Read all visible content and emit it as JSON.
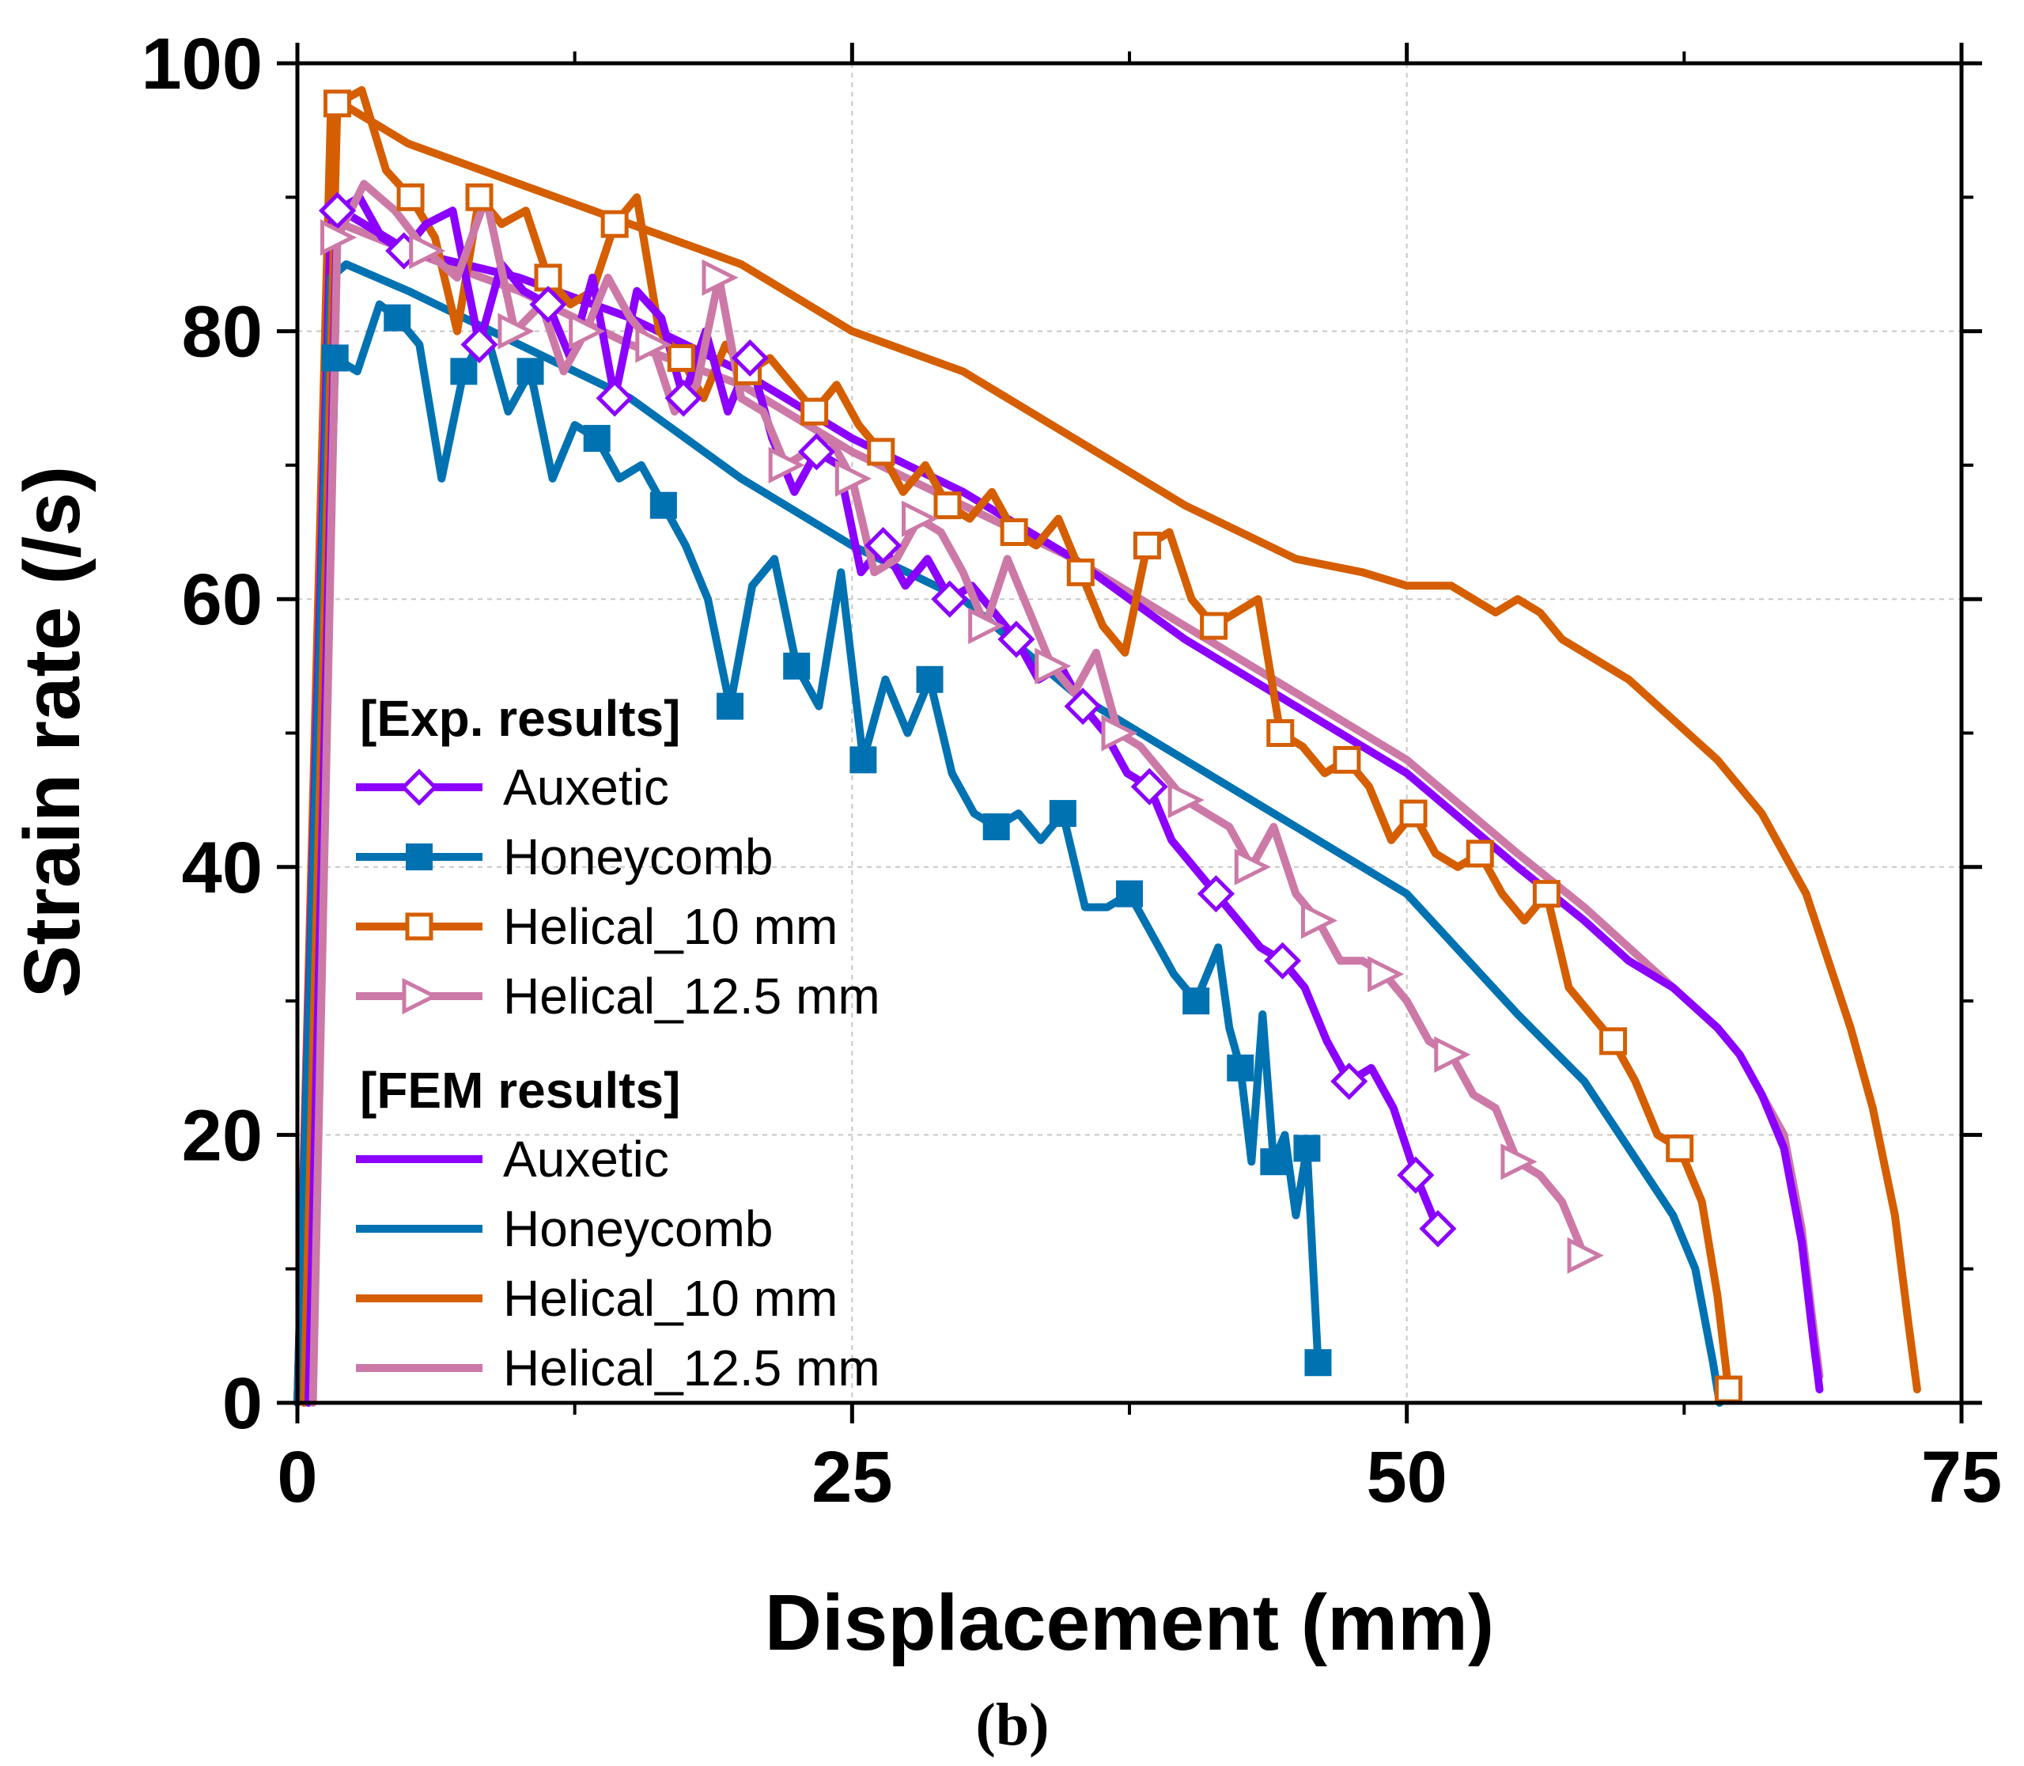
{
  "chart_data": {
    "type": "line",
    "xlabel": "Displacement (mm)",
    "ylabel": "Strain rate (/s)",
    "panel_label": "(b)",
    "xlim": [
      0,
      75
    ],
    "ylim": [
      0,
      100
    ],
    "xticks": [
      0,
      25,
      50,
      75
    ],
    "yticks": [
      0,
      20,
      40,
      60,
      80,
      100
    ],
    "grid": true,
    "legend_position": "left",
    "legend_groups": [
      {
        "heading": "[Exp. results]",
        "entries": [
          "Auxetic",
          "Honeycomb",
          "Helical_10 mm",
          "Helical_12.5 mm"
        ]
      },
      {
        "heading": "[FEM results]",
        "entries": [
          "Auxetic",
          "Honeycomb",
          "Helical_10 mm",
          "Helical_12.5 mm"
        ]
      }
    ],
    "series": [
      {
        "name": "Auxetic",
        "group": "exp",
        "color": "#8B00FF",
        "marker": "diamond-open",
        "x": [
          0.5,
          1.8,
          2.8,
          3.8,
          4.8,
          5.8,
          7.0,
          8.2,
          9.2,
          10.2,
          11.3,
          12.3,
          13.3,
          14.3,
          15.3,
          16.4,
          17.4,
          18.4,
          19.4,
          20.4,
          21.4,
          22.4,
          23.4,
          24.4,
          25.4,
          26.4,
          27.4,
          28.4,
          29.4,
          30.4,
          31.4,
          32.4,
          33.4,
          34.4,
          35.4,
          36.4,
          37.4,
          38.4,
          39.4,
          40.4,
          41.4,
          42.4,
          43.4,
          44.4,
          45.4,
          46.4,
          47.4,
          48.4,
          49.4,
          50.4,
          51.4
        ],
        "y": [
          0,
          89,
          90,
          87,
          86,
          88,
          89,
          79,
          85,
          83,
          82,
          78,
          84,
          75,
          83,
          81,
          75,
          80,
          74,
          78,
          72,
          68,
          71,
          70,
          62,
          64,
          61,
          63,
          60,
          61,
          59,
          57,
          54,
          55,
          52,
          50,
          47,
          46,
          42,
          40,
          38,
          36,
          34,
          33,
          31,
          27,
          24,
          25,
          22,
          17,
          13
        ]
      },
      {
        "name": "Honeycomb",
        "group": "exp",
        "color": "#0072B2",
        "marker": "square-filled",
        "x": [
          0.5,
          1.7,
          2.7,
          3.7,
          4.5,
          5.5,
          6.5,
          7.5,
          8.5,
          9.5,
          10.5,
          11.5,
          12.5,
          13.5,
          14.5,
          15.5,
          16.5,
          17.5,
          18.5,
          19.5,
          20.5,
          21.5,
          22.5,
          23.5,
          24.5,
          25.5,
          26.5,
          27.5,
          28.5,
          29.5,
          30.5,
          31.5,
          32.5,
          33.5,
          34.5,
          35.5,
          36.5,
          37.5,
          38.5,
          39.5,
          40.5,
          41.5,
          42.0,
          42.5,
          43.0,
          43.5,
          44.0,
          44.5,
          45.0,
          45.5,
          46.0
        ],
        "y": [
          0,
          78,
          77,
          82,
          81,
          79,
          69,
          77,
          80,
          74,
          77,
          69,
          73,
          72,
          69,
          70,
          67,
          64,
          60,
          52,
          61,
          63,
          55,
          52,
          62,
          48,
          54,
          50,
          54,
          47,
          44,
          43,
          44,
          42,
          44,
          37,
          37,
          38,
          35,
          32,
          30,
          34,
          28,
          25,
          18,
          29,
          18,
          20,
          14,
          19,
          3
        ]
      },
      {
        "name": "Helical_10 mm",
        "group": "exp",
        "color": "#D55E00",
        "marker": "square-open",
        "x": [
          0.3,
          1.8,
          2.9,
          4.0,
          5.1,
          6.2,
          7.2,
          8.2,
          9.2,
          10.3,
          11.3,
          12.3,
          13.3,
          14.3,
          15.3,
          16.3,
          17.3,
          18.3,
          19.3,
          20.3,
          21.3,
          22.3,
          23.3,
          24.3,
          25.3,
          26.3,
          27.3,
          28.3,
          29.3,
          30.3,
          31.3,
          32.3,
          33.3,
          34.3,
          35.3,
          36.3,
          37.3,
          38.3,
          39.3,
          40.3,
          41.3,
          42.3,
          43.3,
          44.3,
          45.3,
          46.3,
          47.3,
          48.3,
          49.3,
          50.3,
          51.3,
          52.3,
          53.3,
          54.3,
          55.3,
          56.3,
          57.3,
          58.3,
          59.3,
          60.3,
          61.3,
          62.3,
          63.3,
          64.0,
          64.5
        ],
        "y": [
          0,
          97,
          98,
          92,
          90,
          87,
          80,
          90,
          88,
          89,
          84,
          82,
          83,
          88,
          90,
          80,
          78,
          75,
          79,
          77,
          78,
          76,
          74,
          76,
          73,
          71,
          68,
          70,
          67,
          66,
          68,
          65,
          64,
          66,
          62,
          58,
          56,
          64,
          65,
          60,
          58,
          59,
          60,
          50,
          49,
          47,
          48,
          46,
          42,
          44,
          41,
          40,
          41,
          38,
          36,
          38,
          31,
          29,
          27,
          24,
          20,
          19,
          15,
          8,
          1
        ]
      },
      {
        "name": "Helical_12.5 mm",
        "group": "exp",
        "color": "#CC79A7",
        "marker": "triangle-right-open",
        "x": [
          0.7,
          1.8,
          3.0,
          4.4,
          5.8,
          7.2,
          8.5,
          9.8,
          11.0,
          12.0,
          13.0,
          14.0,
          15.0,
          16.0,
          17.0,
          18.0,
          19.0,
          20.0,
          21.0,
          22.0,
          23.0,
          24.0,
          25.0,
          26.0,
          27.0,
          28.0,
          29.0,
          30.0,
          31.0,
          32.0,
          33.0,
          34.0,
          35.0,
          36.0,
          37.0,
          38.0,
          39.0,
          40.0,
          41.0,
          42.0,
          43.0,
          44.0,
          45.0,
          46.0,
          47.0,
          48.0,
          49.0,
          50.0,
          51.0,
          52.0,
          53.0,
          54.0,
          55.0,
          56.0,
          57.0,
          58.0
        ],
        "y": [
          0,
          87,
          91,
          89,
          86,
          84,
          90,
          80,
          82,
          77,
          80,
          84,
          81,
          79,
          74,
          76,
          84,
          75,
          74,
          70,
          71,
          72,
          69,
          62,
          63,
          66,
          65,
          62,
          58,
          63,
          59,
          55,
          53,
          56,
          50,
          49,
          47,
          45,
          44,
          43,
          40,
          43,
          38,
          36,
          33,
          33,
          32,
          30,
          27,
          26,
          23,
          22,
          18,
          17,
          15,
          11
        ]
      },
      {
        "name": "Auxetic",
        "group": "fem",
        "color": "#8B00FF",
        "marker": "none",
        "x": [
          0,
          1.5,
          2.0,
          5,
          10,
          15,
          20,
          25,
          30,
          35,
          40,
          45,
          50,
          55,
          58,
          60,
          62,
          64,
          65,
          66,
          67,
          67.8,
          68.3,
          68.6
        ],
        "y": [
          0,
          88,
          89,
          86,
          84,
          81,
          77,
          72,
          68,
          63,
          57,
          52,
          47,
          40,
          36,
          33,
          31,
          28,
          26,
          23,
          19,
          12,
          5,
          1
        ]
      },
      {
        "name": "Honeycomb",
        "group": "fem",
        "color": "#0072B2",
        "marker": "none",
        "x": [
          0,
          1.5,
          2.2,
          5,
          10,
          15,
          20,
          25,
          30,
          35,
          40,
          45,
          50,
          55,
          58,
          60,
          62,
          63,
          63.8,
          64.1
        ],
        "y": [
          0,
          84,
          85,
          83,
          79,
          75,
          69,
          64,
          60,
          53,
          48,
          43,
          38,
          29,
          24,
          19,
          14,
          10,
          3,
          0
        ]
      },
      {
        "name": "Helical_10 mm",
        "group": "fem",
        "color": "#D55E00",
        "marker": "none",
        "x": [
          0,
          1.5,
          2.0,
          5,
          10,
          15,
          20,
          25,
          30,
          35,
          40,
          45,
          48,
          50,
          52,
          54,
          55,
          56,
          57,
          60,
          62,
          64,
          66,
          68,
          70,
          71,
          72,
          72.6,
          73.0
        ],
        "y": [
          0,
          96,
          97,
          94,
          91,
          88,
          85,
          80,
          77,
          72,
          67,
          63,
          62,
          61,
          61,
          59,
          60,
          59,
          57,
          54,
          51,
          48,
          44,
          38,
          28,
          22,
          14,
          6,
          1
        ]
      },
      {
        "name": "Helical_12.5 mm",
        "group": "fem",
        "color": "#CC79A7",
        "marker": "none",
        "x": [
          0,
          1.5,
          2.0,
          5,
          10,
          15,
          20,
          25,
          30,
          35,
          40,
          45,
          50,
          55,
          58,
          60,
          62,
          64,
          65,
          66,
          67,
          67.8,
          68.3,
          68.6
        ],
        "y": [
          0,
          87,
          88,
          86,
          83,
          79,
          76,
          71,
          67,
          63,
          58,
          53,
          48,
          41,
          37,
          34,
          31,
          28,
          26,
          23,
          20,
          13,
          6,
          2
        ]
      }
    ]
  }
}
